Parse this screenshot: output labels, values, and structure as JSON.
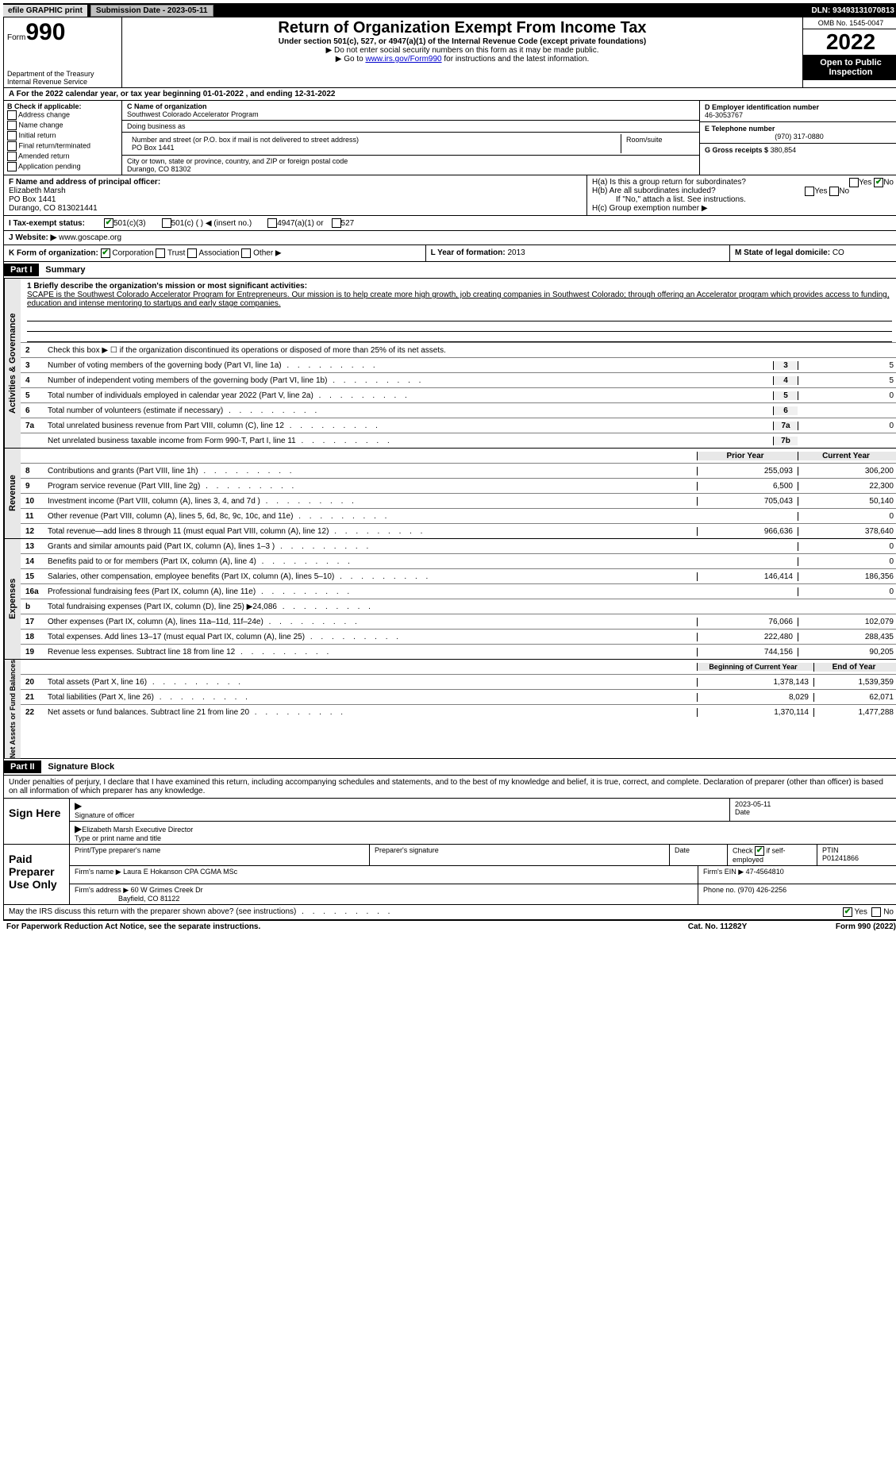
{
  "top": {
    "efile": "efile GRAPHIC print",
    "submission_label": "Submission Date - 2023-05-11",
    "dln": "DLN: 93493131070813"
  },
  "header": {
    "form_prefix": "Form",
    "form_num": "990",
    "dept": "Department of the Treasury",
    "irs": "Internal Revenue Service",
    "title": "Return of Organization Exempt From Income Tax",
    "sub": "Under section 501(c), 527, or 4947(a)(1) of the Internal Revenue Code (except private foundations)",
    "note1": "▶ Do not enter social security numbers on this form as it may be made public.",
    "note2_pre": "▶ Go to ",
    "note2_link": "www.irs.gov/Form990",
    "note2_post": " for instructions and the latest information.",
    "omb": "OMB No. 1545-0047",
    "year": "2022",
    "open_public": "Open to Public Inspection"
  },
  "a_line": "A For the 2022 calendar year, or tax year beginning 01-01-2022     , and ending 12-31-2022",
  "b": {
    "label": "B Check if applicable:",
    "opts": [
      "Address change",
      "Name change",
      "Initial return",
      "Final return/terminated",
      "Amended return",
      "Application pending"
    ]
  },
  "c": {
    "name_label": "C Name of organization",
    "name": "Southwest Colorado Accelerator Program",
    "dba_label": "Doing business as",
    "addr_label": "Number and street (or P.O. box if mail is not delivered to street address)",
    "room_label": "Room/suite",
    "addr": "PO Box 1441",
    "city_label": "City or town, state or province, country, and ZIP or foreign postal code",
    "city": "Durango, CO  81302"
  },
  "d": {
    "ein_label": "D Employer identification number",
    "ein": "46-3053767",
    "tel_label": "E Telephone number",
    "tel": "(970) 317-0880",
    "gross_label": "G Gross receipts $",
    "gross": "380,854"
  },
  "f": {
    "label": "F  Name and address of principal officer:",
    "name": "Elizabeth Marsh",
    "addr1": "PO Box 1441",
    "addr2": "Durango, CO  813021441"
  },
  "h": {
    "a_q": "H(a)  Is this a group return for subordinates?",
    "a_yes": "Yes",
    "a_no": "No",
    "b_q": "H(b)  Are all subordinates included?",
    "b_note": "If \"No,\" attach a list. See instructions.",
    "c_q": "H(c)  Group exemption number ▶"
  },
  "i": {
    "label": "I   Tax-exempt status:",
    "o1": "501(c)(3)",
    "o2": "501(c) (    ) ◀ (insert no.)",
    "o3": "4947(a)(1) or",
    "o4": "527"
  },
  "j": {
    "label": "J   Website: ▶",
    "val": "www.goscape.org"
  },
  "k": {
    "label": "K Form of organization:",
    "o1": "Corporation",
    "o2": "Trust",
    "o3": "Association",
    "o4": "Other ▶"
  },
  "l": {
    "label": "L Year of formation:",
    "val": "2013"
  },
  "m": {
    "label": "M State of legal domicile:",
    "val": "CO"
  },
  "part1": {
    "label": "Part I",
    "title": "Summary",
    "mission_q": "1 Briefly describe the organization's mission or most significant activities:",
    "mission": "SCAPE is the Southwest Colorado Accelerator Program for Entrepreneurs. Our mission is to help create more high growth, job creating companies in Southwest Colorado; through offering an Accelerator program which provides access to funding, education and intense mentoring to startups and early stage companies.",
    "line2": "Check this box ▶ ☐ if the organization discontinued its operations or disposed of more than 25% of its net assets.",
    "lines_ag": [
      {
        "n": "3",
        "d": "Number of voting members of the governing body (Part VI, line 1a)",
        "k": "3",
        "v": "5"
      },
      {
        "n": "4",
        "d": "Number of independent voting members of the governing body (Part VI, line 1b)",
        "k": "4",
        "v": "5"
      },
      {
        "n": "5",
        "d": "Total number of individuals employed in calendar year 2022 (Part V, line 2a)",
        "k": "5",
        "v": "0"
      },
      {
        "n": "6",
        "d": "Total number of volunteers (estimate if necessary)",
        "k": "6",
        "v": ""
      },
      {
        "n": "7a",
        "d": "Total unrelated business revenue from Part VIII, column (C), line 12",
        "k": "7a",
        "v": "0"
      },
      {
        "n": "",
        "d": "Net unrelated business taxable income from Form 990-T, Part I, line 11",
        "k": "7b",
        "v": ""
      }
    ],
    "col_prior": "Prior Year",
    "col_current": "Current Year",
    "revenue": [
      {
        "n": "8",
        "d": "Contributions and grants (Part VIII, line 1h)",
        "p": "255,093",
        "c": "306,200"
      },
      {
        "n": "9",
        "d": "Program service revenue (Part VIII, line 2g)",
        "p": "6,500",
        "c": "22,300"
      },
      {
        "n": "10",
        "d": "Investment income (Part VIII, column (A), lines 3, 4, and 7d )",
        "p": "705,043",
        "c": "50,140"
      },
      {
        "n": "11",
        "d": "Other revenue (Part VIII, column (A), lines 5, 6d, 8c, 9c, 10c, and 11e)",
        "p": "",
        "c": "0"
      },
      {
        "n": "12",
        "d": "Total revenue—add lines 8 through 11 (must equal Part VIII, column (A), line 12)",
        "p": "966,636",
        "c": "378,640"
      }
    ],
    "expenses": [
      {
        "n": "13",
        "d": "Grants and similar amounts paid (Part IX, column (A), lines 1–3 )",
        "p": "",
        "c": "0"
      },
      {
        "n": "14",
        "d": "Benefits paid to or for members (Part IX, column (A), line 4)",
        "p": "",
        "c": "0"
      },
      {
        "n": "15",
        "d": "Salaries, other compensation, employee benefits (Part IX, column (A), lines 5–10)",
        "p": "146,414",
        "c": "186,356"
      },
      {
        "n": "16a",
        "d": "Professional fundraising fees (Part IX, column (A), line 11e)",
        "p": "",
        "c": "0"
      },
      {
        "n": "b",
        "d": "Total fundraising expenses (Part IX, column (D), line 25) ▶24,086",
        "p": "grey",
        "c": "grey"
      },
      {
        "n": "17",
        "d": "Other expenses (Part IX, column (A), lines 11a–11d, 11f–24e)",
        "p": "76,066",
        "c": "102,079"
      },
      {
        "n": "18",
        "d": "Total expenses. Add lines 13–17 (must equal Part IX, column (A), line 25)",
        "p": "222,480",
        "c": "288,435"
      },
      {
        "n": "19",
        "d": "Revenue less expenses. Subtract line 18 from line 12",
        "p": "744,156",
        "c": "90,205"
      }
    ],
    "col_begin": "Beginning of Current Year",
    "col_end": "End of Year",
    "netassets": [
      {
        "n": "20",
        "d": "Total assets (Part X, line 16)",
        "p": "1,378,143",
        "c": "1,539,359"
      },
      {
        "n": "21",
        "d": "Total liabilities (Part X, line 26)",
        "p": "8,029",
        "c": "62,071"
      },
      {
        "n": "22",
        "d": "Net assets or fund balances. Subtract line 21 from line 20",
        "p": "1,370,114",
        "c": "1,477,288"
      }
    ]
  },
  "part2": {
    "label": "Part II",
    "title": "Signature Block",
    "penalty": "Under penalties of perjury, I declare that I have examined this return, including accompanying schedules and statements, and to the best of my knowledge and belief, it is true, correct, and complete. Declaration of preparer (other than officer) is based on all information of which preparer has any knowledge."
  },
  "sign": {
    "here": "Sign Here",
    "sig_officer": "Signature of officer",
    "date": "Date",
    "date_val": "2023-05-11",
    "name": "Elizabeth Marsh  Executive Director",
    "name_label": "Type or print name and title"
  },
  "paid": {
    "label": "Paid Preparer Use Only",
    "col1": "Print/Type preparer's name",
    "col2": "Preparer's signature",
    "col3": "Date",
    "col4_pre": "Check",
    "col4_post": "if self-employed",
    "col5": "PTIN",
    "ptin": "P01241866",
    "firm_name_label": "Firm's name     ▶",
    "firm_name": "Laura E Hokanson CPA CGMA MSc",
    "firm_ein_label": "Firm's EIN ▶",
    "firm_ein": "47-4564810",
    "firm_addr_label": "Firm's address ▶",
    "firm_addr": "60 W Grimes Creek Dr",
    "firm_city": "Bayfield, CO  81122",
    "phone_label": "Phone no.",
    "phone": "(970) 426-2256"
  },
  "discuss": {
    "q": "May the IRS discuss this return with the preparer shown above? (see instructions)",
    "yes": "Yes",
    "no": "No"
  },
  "footer": {
    "left": "For Paperwork Reduction Act Notice, see the separate instructions.",
    "mid": "Cat. No. 11282Y",
    "right": "Form 990 (2022)"
  },
  "vtabs": {
    "ag": "Activities & Governance",
    "rev": "Revenue",
    "exp": "Expenses",
    "na": "Net Assets or Fund Balances"
  }
}
